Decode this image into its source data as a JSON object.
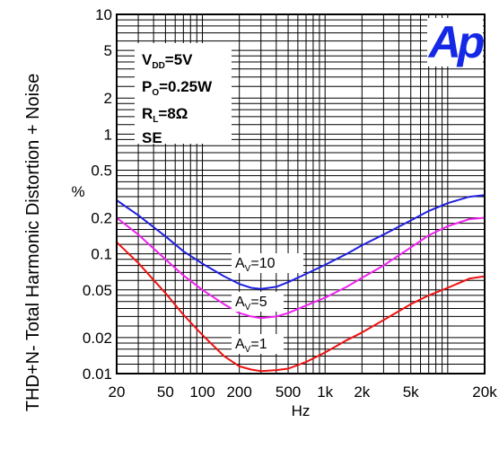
{
  "chart_data": {
    "type": "line",
    "title": "",
    "xlabel": "Hz",
    "ylabel": "THD+N- Total Harmonic Distortion + Noise",
    "yunit_label": "%",
    "xscale": "log",
    "yscale": "log",
    "xlim": [
      20,
      20000
    ],
    "ylim": [
      0.01,
      10
    ],
    "grid": true,
    "x_tick_labels": [
      {
        "value": 20,
        "label": "20"
      },
      {
        "value": 50,
        "label": "50"
      },
      {
        "value": 100,
        "label": "100"
      },
      {
        "value": 200,
        "label": "200"
      },
      {
        "value": 500,
        "label": "500"
      },
      {
        "value": 1000,
        "label": "1k"
      },
      {
        "value": 2000,
        "label": "2k"
      },
      {
        "value": 5000,
        "label": "5k"
      },
      {
        "value": 20000,
        "label": "20k"
      }
    ],
    "y_tick_labels": [
      {
        "value": 10,
        "label": "10"
      },
      {
        "value": 5,
        "label": "5"
      },
      {
        "value": 2,
        "label": "2"
      },
      {
        "value": 1,
        "label": "1"
      },
      {
        "value": 0.5,
        "label": "0.5"
      },
      {
        "value": 0.2,
        "label": "0.2"
      },
      {
        "value": 0.1,
        "label": "0.1"
      },
      {
        "value": 0.05,
        "label": "0.05"
      },
      {
        "value": 0.02,
        "label": "0.02"
      },
      {
        "value": 0.01,
        "label": "0.01"
      }
    ],
    "conditions": [
      {
        "main": "V",
        "sub": "DD",
        "rest": "=5V"
      },
      {
        "main": "P",
        "sub": "O",
        "rest": "=0.25W"
      },
      {
        "main": "R",
        "sub": "L",
        "rest": "=8Ω"
      },
      {
        "main": "SE",
        "sub": "",
        "rest": ""
      }
    ],
    "logo": "Ap",
    "series": [
      {
        "name": "AV=10",
        "label_main": "A",
        "label_sub": "V",
        "label_rest": "=10",
        "color": "#2020e0",
        "x": [
          20,
          30,
          50,
          70,
          100,
          150,
          200,
          250,
          300,
          400,
          500,
          700,
          1000,
          1500,
          2000,
          3000,
          5000,
          7000,
          10000,
          15000,
          20000
        ],
        "y": [
          0.28,
          0.21,
          0.14,
          0.105,
          0.083,
          0.065,
          0.056,
          0.052,
          0.051,
          0.053,
          0.058,
          0.068,
          0.081,
          0.1,
          0.118,
          0.145,
          0.19,
          0.228,
          0.265,
          0.3,
          0.31
        ]
      },
      {
        "name": "AV=5",
        "label_main": "A",
        "label_sub": "V",
        "label_rest": "=5",
        "color": "#ee22ee",
        "x": [
          20,
          30,
          50,
          70,
          100,
          150,
          200,
          250,
          300,
          400,
          500,
          700,
          1000,
          1500,
          2000,
          3000,
          5000,
          7000,
          10000,
          15000,
          20000
        ],
        "y": [
          0.2,
          0.145,
          0.09,
          0.066,
          0.05,
          0.038,
          0.032,
          0.03,
          0.029,
          0.03,
          0.032,
          0.037,
          0.043,
          0.053,
          0.063,
          0.08,
          0.113,
          0.143,
          0.17,
          0.195,
          0.2
        ]
      },
      {
        "name": "AV=1",
        "label_main": "A",
        "label_sub": "V",
        "label_rest": "=1",
        "color": "#ee1111",
        "x": [
          20,
          30,
          50,
          70,
          100,
          150,
          200,
          250,
          300,
          400,
          500,
          700,
          1000,
          1500,
          2000,
          3000,
          5000,
          7000,
          10000,
          15000,
          20000
        ],
        "y": [
          0.125,
          0.084,
          0.047,
          0.031,
          0.021,
          0.014,
          0.0115,
          0.0108,
          0.0105,
          0.0107,
          0.011,
          0.0125,
          0.015,
          0.019,
          0.022,
          0.028,
          0.038,
          0.045,
          0.052,
          0.062,
          0.065
        ]
      }
    ]
  }
}
